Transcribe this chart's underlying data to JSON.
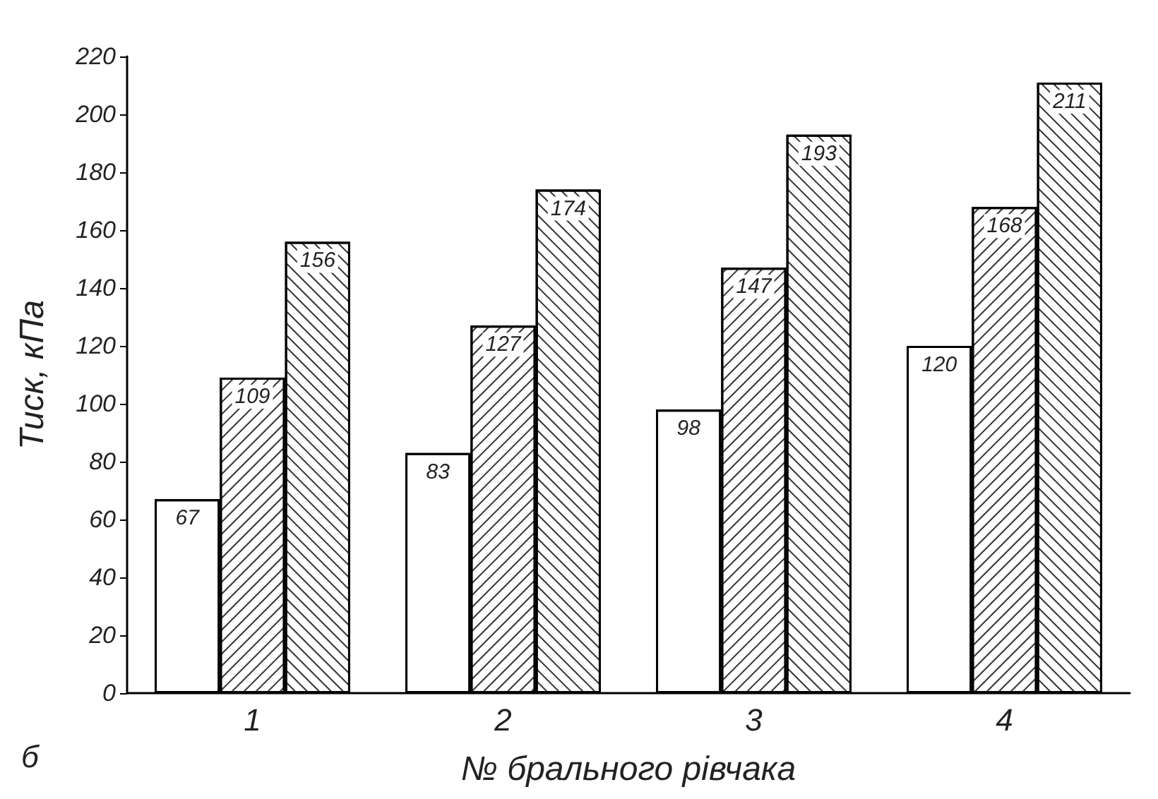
{
  "chart_data": {
    "type": "bar",
    "xlabel": "№ брального рівчака",
    "ylabel": "Тиск, кПа",
    "annotations": [
      "б"
    ],
    "categories": [
      "1",
      "2",
      "3",
      "4"
    ],
    "series": [
      {
        "color": "#ffffff",
        "values": [
          67,
          83,
          98,
          120
        ]
      },
      {
        "color": "#ffffff",
        "values": [
          109,
          127,
          147,
          168
        ]
      },
      {
        "color": "#ffffff",
        "values": [
          156,
          174,
          193,
          211
        ]
      }
    ],
    "ylim": [
      0,
      220
    ],
    "yticks": [
      0,
      20,
      40,
      60,
      80,
      100,
      120,
      140,
      160,
      180,
      200,
      220
    ],
    "grid": false,
    "data_labels": true
  }
}
